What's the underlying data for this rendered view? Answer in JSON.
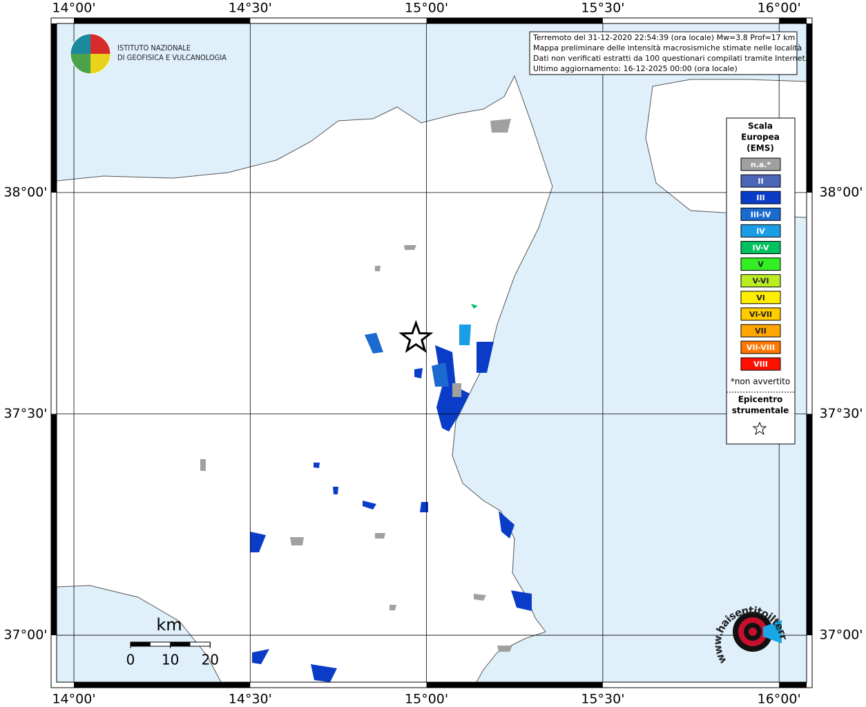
{
  "map": {
    "lonlim": [
      13.951,
      16.078
    ],
    "latlim": [
      36.894,
      38.382
    ],
    "lon_ticks": [
      {
        "value": 14.0,
        "label": "14°00'"
      },
      {
        "value": 14.5,
        "label": "14°30'"
      },
      {
        "value": 15.0,
        "label": "15°00'"
      },
      {
        "value": 15.5,
        "label": "15°30'"
      },
      {
        "value": 16.0,
        "label": "16°00'"
      }
    ],
    "lat_ticks": [
      {
        "value": 37.0,
        "label": "37°00'"
      },
      {
        "value": 37.5,
        "label": "37°30'"
      },
      {
        "value": 38.0,
        "label": "38°00'"
      }
    ],
    "info_lines": [
      "Terremoto del 31-12-2020 22:54:39 (ora locale) Mw=3.8 Prof=17 km",
      "Mappa preliminare delle intensità macrosismiche stimate nelle località",
      "Dati non verificati estratti da 100 questionari compilati tramite Internet.",
      "Ultimo aggiornamento: 16-12-2025 00:00 (ora locale)"
    ],
    "institute": [
      "ISTITUTO NAZIONALE",
      "DI GEOFISICA E VULCANOLOGIA"
    ],
    "legend": {
      "title": [
        "Scala",
        "Europea",
        "(EMS)"
      ],
      "items": [
        {
          "label": "n.a.*",
          "color": "#a0a0a0"
        },
        {
          "label": "II",
          "color": "#4a66b4"
        },
        {
          "label": "III",
          "color": "#0a3cc8"
        },
        {
          "label": "III-IV",
          "color": "#1a6ad0"
        },
        {
          "label": "IV",
          "color": "#1a9ee6"
        },
        {
          "label": "IV-V",
          "color": "#00c060"
        },
        {
          "label": "V",
          "color": "#33ee22"
        },
        {
          "label": "V-VI",
          "color": "#bbee22"
        },
        {
          "label": "VI",
          "color": "#ffee00"
        },
        {
          "label": "VI-VII",
          "color": "#ffcc00"
        },
        {
          "label": "VII",
          "color": "#ffa500"
        },
        {
          "label": "VII-VIII",
          "color": "#ff7700"
        },
        {
          "label": "VIII",
          "color": "#ff1100"
        }
      ],
      "note": "*non avvertito",
      "epicenter_title": [
        "Epicentro",
        "strumentale"
      ]
    },
    "epicenter": {
      "lon": 14.97,
      "lat": 37.671
    },
    "scale": {
      "unit": "km",
      "ticks": [
        0,
        10,
        20
      ]
    },
    "site_logo": "www.haisentitoilterremoto.it"
  }
}
